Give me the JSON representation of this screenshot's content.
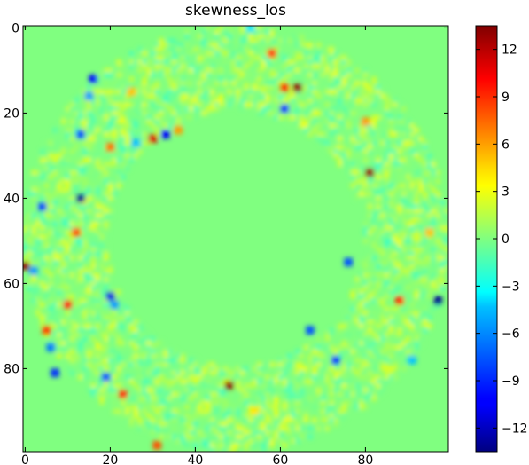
{
  "chart_data": {
    "type": "heatmap",
    "title": "skewness_los",
    "xlabel": "",
    "ylabel": "",
    "xlim": [
      -0.5,
      99.5
    ],
    "ylim": [
      99.5,
      -0.5
    ],
    "y_axis_inverted": true,
    "x_ticks": [
      0,
      20,
      40,
      60,
      80
    ],
    "y_ticks": [
      0,
      20,
      40,
      60,
      80
    ],
    "colormap": "jet",
    "background_value": 0,
    "colorbar": {
      "min": -13.5,
      "max": 13.5,
      "ticks": [
        -12,
        -9,
        -6,
        -3,
        0,
        3,
        6,
        9,
        12
      ],
      "tick_labels": [
        "−12",
        "−9",
        "−6",
        "−3",
        "0",
        "3",
        "6",
        "9",
        "12"
      ]
    },
    "ring": {
      "center": [
        49.5,
        49.5
      ],
      "inner_radius": 30,
      "outer_radius": 50
    },
    "noise_amplitude": 2.5,
    "outliers": [
      {
        "x": 53,
        "y": 0,
        "value": -4
      },
      {
        "x": 58,
        "y": 6,
        "value": 9
      },
      {
        "x": 16,
        "y": 12,
        "value": -10
      },
      {
        "x": 61,
        "y": 14,
        "value": 9
      },
      {
        "x": 64,
        "y": 14,
        "value": 13
      },
      {
        "x": 15,
        "y": 16,
        "value": -6
      },
      {
        "x": 25,
        "y": 15,
        "value": 5
      },
      {
        "x": 61,
        "y": 19,
        "value": -9
      },
      {
        "x": 80,
        "y": 22,
        "value": 6
      },
      {
        "x": 13,
        "y": 25,
        "value": -8
      },
      {
        "x": 33,
        "y": 25,
        "value": -10
      },
      {
        "x": 30,
        "y": 26,
        "value": 11
      },
      {
        "x": 20,
        "y": 28,
        "value": 7
      },
      {
        "x": 36,
        "y": 24,
        "value": 6
      },
      {
        "x": 26,
        "y": 27,
        "value": -5
      },
      {
        "x": 81,
        "y": 34,
        "value": 13
      },
      {
        "x": 13,
        "y": 40,
        "value": -13
      },
      {
        "x": 4,
        "y": 42,
        "value": -8
      },
      {
        "x": 12,
        "y": 48,
        "value": 8
      },
      {
        "x": 95,
        "y": 48,
        "value": 5
      },
      {
        "x": 76,
        "y": 55,
        "value": -8
      },
      {
        "x": 0,
        "y": 56,
        "value": 13
      },
      {
        "x": 2,
        "y": 57,
        "value": -6
      },
      {
        "x": 20,
        "y": 63,
        "value": -11
      },
      {
        "x": 88,
        "y": 64,
        "value": 9
      },
      {
        "x": 97,
        "y": 64,
        "value": -13
      },
      {
        "x": 10,
        "y": 65,
        "value": 9
      },
      {
        "x": 21,
        "y": 65,
        "value": -6
      },
      {
        "x": 5,
        "y": 71,
        "value": 9
      },
      {
        "x": 67,
        "y": 71,
        "value": -8
      },
      {
        "x": 6,
        "y": 75,
        "value": -7
      },
      {
        "x": 73,
        "y": 78,
        "value": -9
      },
      {
        "x": 7,
        "y": 81,
        "value": -9
      },
      {
        "x": 19,
        "y": 82,
        "value": -8
      },
      {
        "x": 48,
        "y": 84,
        "value": 13
      },
      {
        "x": 23,
        "y": 86,
        "value": 9
      },
      {
        "x": 31,
        "y": 98,
        "value": 8
      },
      {
        "x": 54,
        "y": 90,
        "value": 4
      },
      {
        "x": 91,
        "y": 78,
        "value": -5
      }
    ]
  }
}
